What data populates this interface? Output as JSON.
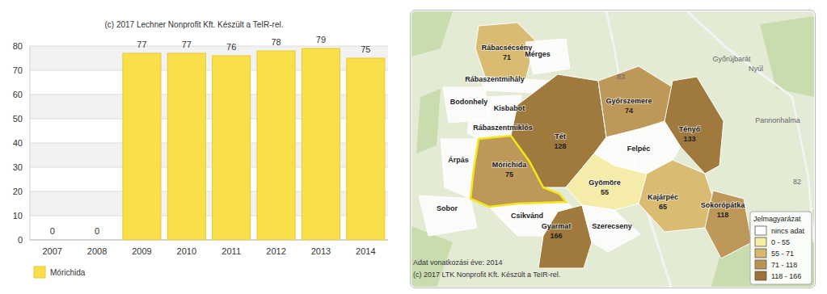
{
  "chart_data": {
    "type": "bar",
    "title": "(c) 2017 Lechner Nonprofit Kft. Készült a TeIR-rel.",
    "categories": [
      "2007",
      "2008",
      "2009",
      "2010",
      "2011",
      "2012",
      "2013",
      "2014"
    ],
    "series": [
      {
        "name": "Mórichida",
        "color": "#f9e04b",
        "values": [
          0,
          0,
          77,
          77,
          76,
          78,
          79,
          75
        ]
      }
    ],
    "ylim": [
      0,
      80
    ],
    "yticks": [
      0,
      10,
      20,
      30,
      40,
      50,
      60,
      70,
      80
    ],
    "grid": true,
    "data_labels": true,
    "legend": "bottom-left"
  },
  "map": {
    "type": "choropleth",
    "highlight": "Mórichida",
    "regions": [
      {
        "name": "Rábacsécsény",
        "value": 71
      },
      {
        "name": "Mérges",
        "value": null
      },
      {
        "name": "Rábaszentmihály",
        "value": null
      },
      {
        "name": "Bodonhely",
        "value": null
      },
      {
        "name": "Kisbabot",
        "value": null
      },
      {
        "name": "Rábaszentmiklós",
        "value": null
      },
      {
        "name": "Tét",
        "value": 128
      },
      {
        "name": "Győrszemere",
        "value": 74
      },
      {
        "name": "Tényő",
        "value": 133
      },
      {
        "name": "Felpéc",
        "value": null
      },
      {
        "name": "Mórichida",
        "value": 75
      },
      {
        "name": "Árpás",
        "value": null
      },
      {
        "name": "Sobor",
        "value": null
      },
      {
        "name": "Gyömöre",
        "value": 55
      },
      {
        "name": "Kajárpéc",
        "value": 65
      },
      {
        "name": "Sokorópátka",
        "value": 118
      },
      {
        "name": "Csikvánd",
        "value": null
      },
      {
        "name": "Gyarmat",
        "value": 166
      },
      {
        "name": "Szerecseny",
        "value": null
      }
    ],
    "base_labels": [
      "Győrújbarát",
      "Nyúl",
      "Pannonhalma",
      "83",
      "82"
    ],
    "legend": {
      "title": "Jelmagyarázat",
      "classes": [
        {
          "label": "nincs adat",
          "min": null,
          "max": null,
          "color": "#ffffff"
        },
        {
          "label": "0 - 55",
          "min": 0,
          "max": 55,
          "color": "#f6eca6"
        },
        {
          "label": "55 - 71",
          "min": 55,
          "max": 71,
          "color": "#d8b86c"
        },
        {
          "label": "71 - 118",
          "min": 71,
          "max": 118,
          "color": "#bb9452"
        },
        {
          "label": "118 - 166",
          "min": 118,
          "max": 166,
          "color": "#9c7334"
        }
      ]
    },
    "footer": [
      "Adat vonatkozási éve: 2014",
      "(c) 2017 LTK Nonprofit Kft. Készült a TeIR-rel."
    ]
  }
}
